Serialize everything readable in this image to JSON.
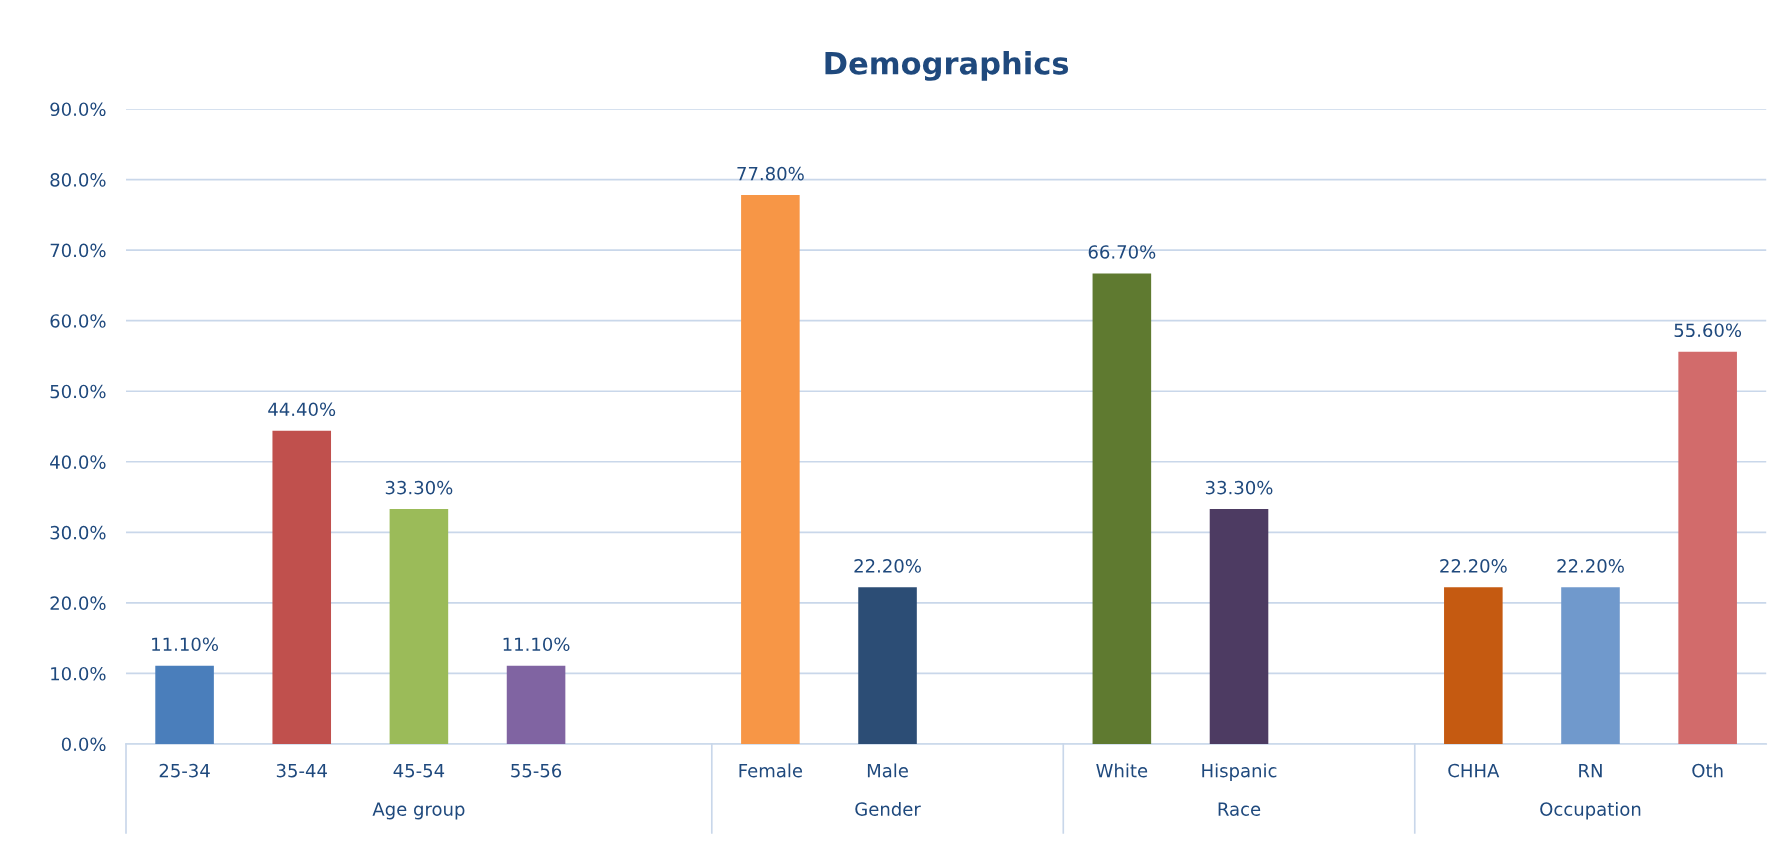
{
  "chart_data": {
    "type": "bar",
    "title": "Demographics",
    "categories": [
      "25-34",
      "35-44",
      "45-54",
      "55-56",
      null,
      "Female",
      "Male",
      null,
      "White",
      "Hispanic",
      null,
      "CHHA",
      "RN",
      "Oth"
    ],
    "values": [
      11.1,
      44.4,
      33.3,
      11.1,
      null,
      77.8,
      22.2,
      null,
      66.7,
      33.3,
      null,
      22.2,
      22.2,
      55.6
    ],
    "value_labels": [
      "11.10%",
      "44.40%",
      "33.30%",
      "11.10%",
      null,
      "77.80%",
      "22.20%",
      null,
      "66.70%",
      "33.30%",
      null,
      "22.20%",
      "22.20%",
      "55.60%"
    ],
    "colors": [
      "#4a7ebb",
      "#c0504d",
      "#9bbb59",
      "#8064a2",
      "#000000",
      "#f79646",
      "#2c4d75",
      "#000000",
      "#5f7a30",
      "#4d3b62",
      "#000000",
      "#c55a11",
      "#7099cc",
      "#d26b6b"
    ],
    "annotations": [
      "Age group",
      "Gender",
      "Race",
      "Occupation"
    ],
    "ylim": [
      0,
      90
    ],
    "yticks": [
      {
        "value": 0,
        "label": "0.0%"
      },
      {
        "value": 10,
        "label": "10.0%"
      },
      {
        "value": 20,
        "label": "20.0%"
      },
      {
        "value": 30,
        "label": "30.0%"
      },
      {
        "value": 40,
        "label": "40.0%"
      },
      {
        "value": 50,
        "label": "50.0%"
      },
      {
        "value": 60,
        "label": "60.0%"
      },
      {
        "value": 70,
        "label": "70.0%"
      },
      {
        "value": 80,
        "label": "80.0%"
      },
      {
        "value": 90,
        "label": "90.0%"
      }
    ],
    "grid": "y"
  }
}
